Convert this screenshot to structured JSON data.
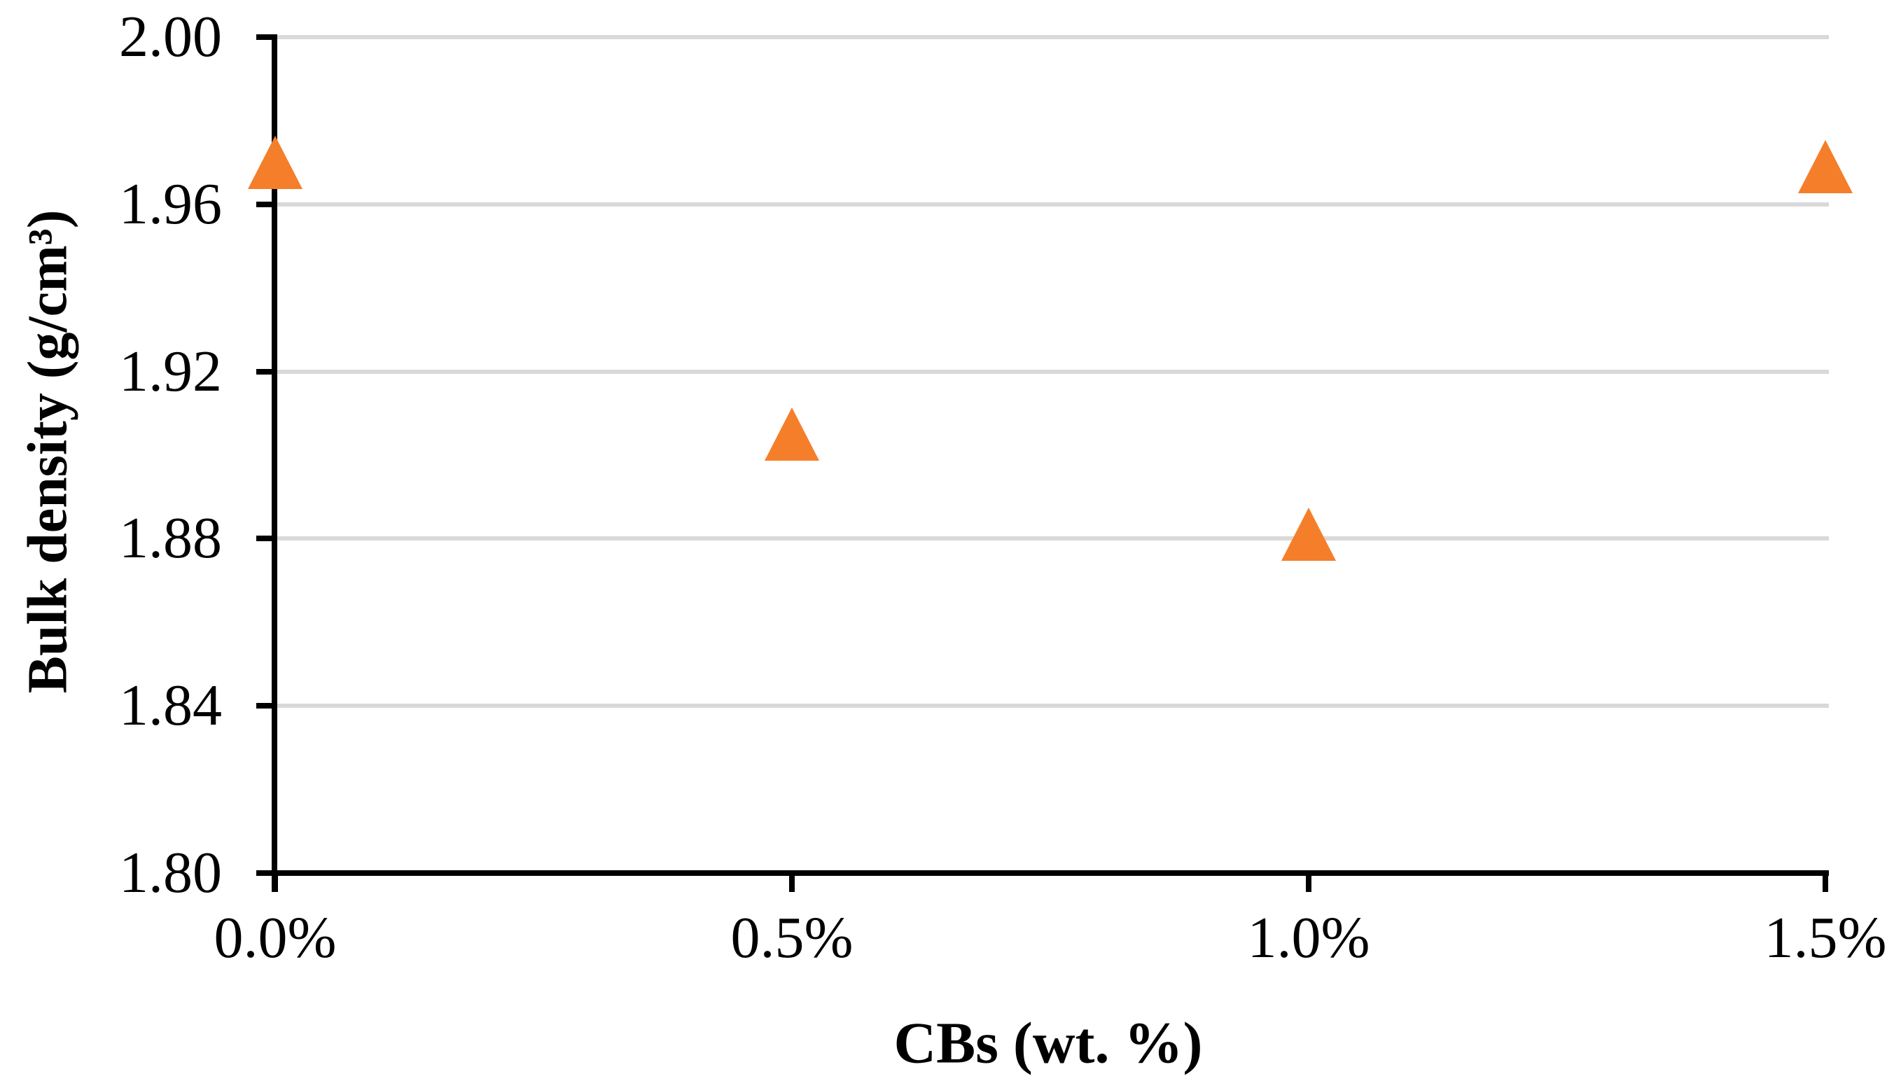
{
  "chart_data": {
    "type": "scatter",
    "title": "",
    "xlabel": "CBs (wt. %)",
    "ylabel": "Bulk density (g/cm³)",
    "categories": [
      "0.0%",
      "0.5%",
      "1.0%",
      "1.5%"
    ],
    "series": [
      {
        "name": "Bulk density",
        "values": [
          1.97,
          1.905,
          1.881,
          1.969
        ]
      }
    ],
    "ylim": [
      1.8,
      2.0
    ],
    "ytick_labels": [
      "2.00",
      "1.96",
      "1.92",
      "1.88",
      "1.84",
      "1.80"
    ],
    "ytick_values": [
      2.0,
      1.96,
      1.92,
      1.88,
      1.84,
      1.8
    ],
    "grid": "horizontal",
    "legend": "none",
    "marker": {
      "shape": "triangle-up",
      "color": "#F57E2B"
    },
    "colors": {
      "axis": "#000000",
      "gridline": "#D9D9D9",
      "text": "#000000",
      "background": "#FFFFFF"
    }
  }
}
